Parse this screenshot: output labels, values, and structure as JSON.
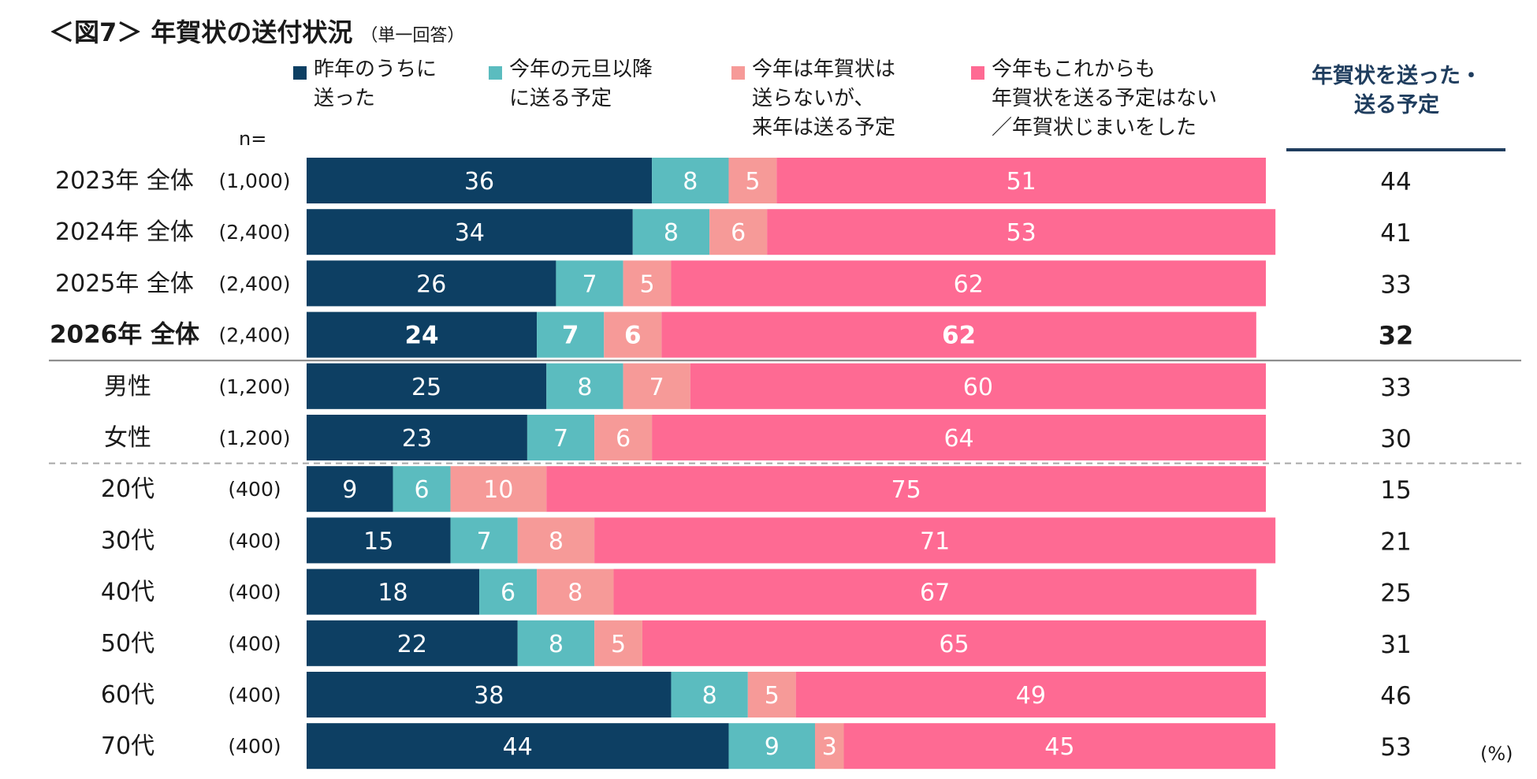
{
  "chart_data": {
    "type": "bar",
    "orientation": "horizontal",
    "stacked": true,
    "title": "＜図7＞ 年賀状の送付状況",
    "subtitle": "（単一回答）",
    "n_label": "n=",
    "unit": "(%)",
    "right_column_header": "年賀状を送った・\n送る予定",
    "categories": [
      "2023年 全体",
      "2024年 全体",
      "2025年 全体",
      "2026年 全体",
      "男性",
      "女性",
      "20代",
      "30代",
      "40代",
      "50代",
      "60代",
      "70代"
    ],
    "sample_sizes": [
      "(1,000)",
      "(2,400)",
      "(2,400)",
      "(2,400)",
      "(1,200)",
      "(1,200)",
      "(400)",
      "(400)",
      "(400)",
      "(400)",
      "(400)",
      "(400)"
    ],
    "highlight_category": "2026年 全体",
    "series": [
      {
        "name": "昨年のうちに\n送った",
        "color": "#0d3f63",
        "text_color": "#ffffff",
        "values": [
          36,
          34,
          26,
          24,
          25,
          23,
          9,
          15,
          18,
          22,
          38,
          44
        ]
      },
      {
        "name": "今年の元旦以降\nに送る予定",
        "color": "#5bbcbf",
        "text_color": "#ffffff",
        "values": [
          8,
          8,
          7,
          7,
          8,
          7,
          6,
          7,
          6,
          8,
          8,
          9
        ]
      },
      {
        "name": "今年は年賀状は\n送らないが、\n来年は送る予定",
        "color": "#f69a98",
        "text_color": "#ffffff",
        "values": [
          5,
          6,
          5,
          6,
          7,
          6,
          10,
          8,
          8,
          5,
          5,
          3
        ]
      },
      {
        "name": "今年もこれからも\n年賀状を送る予定はない\n／年賀状じまいをした",
        "color": "#fe6a93",
        "text_color": "#ffffff",
        "values": [
          51,
          53,
          62,
          62,
          60,
          64,
          75,
          71,
          67,
          65,
          49,
          45
        ]
      }
    ],
    "right_column_values": [
      44,
      41,
      33,
      32,
      33,
      30,
      15,
      21,
      25,
      31,
      46,
      53
    ],
    "xlim": [
      0,
      100
    ],
    "grid": false,
    "legend_position": "top"
  },
  "colors": {
    "header_accent": "#1f3d5e",
    "solid_divider": "#808080",
    "dashed_divider": "#a8a8a8"
  }
}
